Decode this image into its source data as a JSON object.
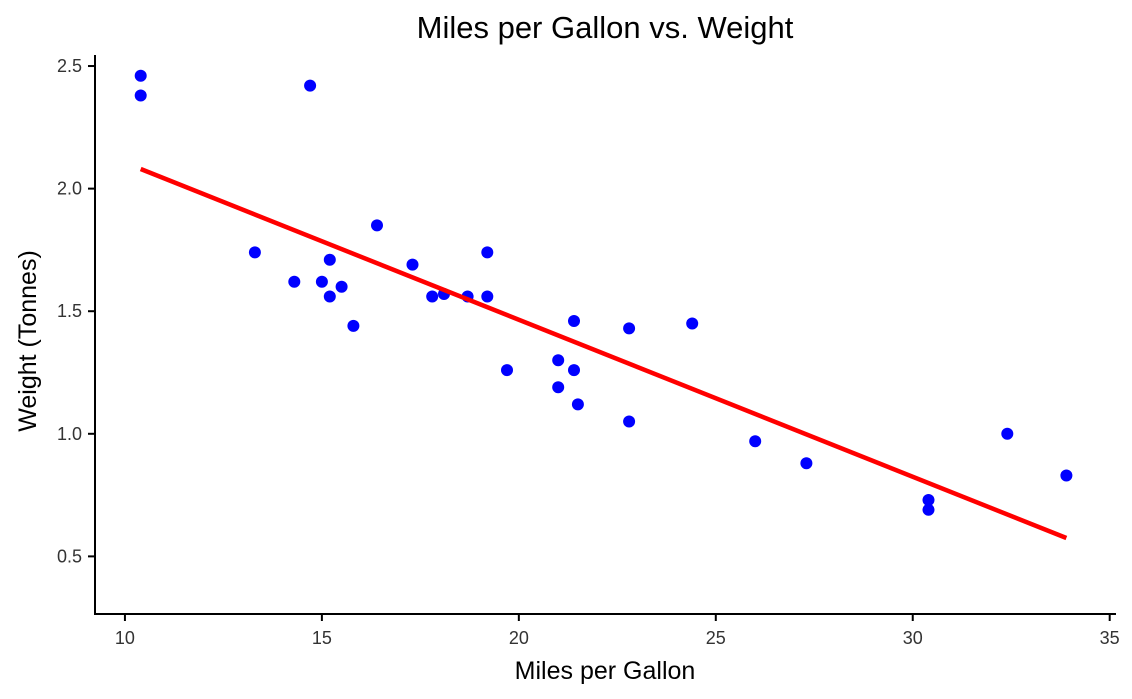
{
  "chart_data": {
    "type": "scatter",
    "title": "Miles per Gallon vs. Weight",
    "xlabel": "Miles per Gallon",
    "ylabel": "Weight (Tonnes)",
    "xlim": [
      9.24,
      35.16
    ],
    "ylim": [
      0.265,
      2.545
    ],
    "x_ticks": [
      10,
      15,
      20,
      25,
      30,
      35
    ],
    "y_ticks": [
      0.5,
      1.0,
      1.5,
      2.0,
      2.5
    ],
    "x_tick_labels": [
      "10",
      "15",
      "20",
      "25",
      "30",
      "35"
    ],
    "y_tick_labels": [
      "0.5",
      "1.0",
      "1.5",
      "2.0",
      "2.5"
    ],
    "grid": false,
    "legend": "none",
    "point_color": "#0000ff",
    "trend_color": "#ff0000",
    "points": [
      {
        "x": 21.0,
        "y": 1.19
      },
      {
        "x": 21.0,
        "y": 1.3
      },
      {
        "x": 22.8,
        "y": 1.05
      },
      {
        "x": 21.4,
        "y": 1.46
      },
      {
        "x": 18.7,
        "y": 1.56
      },
      {
        "x": 18.1,
        "y": 1.57
      },
      {
        "x": 14.3,
        "y": 1.62
      },
      {
        "x": 24.4,
        "y": 1.45
      },
      {
        "x": 22.8,
        "y": 1.43
      },
      {
        "x": 19.2,
        "y": 1.56
      },
      {
        "x": 17.8,
        "y": 1.56
      },
      {
        "x": 16.4,
        "y": 1.85
      },
      {
        "x": 17.3,
        "y": 1.69
      },
      {
        "x": 15.2,
        "y": 1.71
      },
      {
        "x": 10.4,
        "y": 2.38
      },
      {
        "x": 10.4,
        "y": 2.46
      },
      {
        "x": 14.7,
        "y": 2.42
      },
      {
        "x": 32.4,
        "y": 1.0
      },
      {
        "x": 30.4,
        "y": 0.73
      },
      {
        "x": 33.9,
        "y": 0.83
      },
      {
        "x": 21.5,
        "y": 1.12
      },
      {
        "x": 15.5,
        "y": 1.6
      },
      {
        "x": 15.2,
        "y": 1.56
      },
      {
        "x": 13.3,
        "y": 1.74
      },
      {
        "x": 19.2,
        "y": 1.74
      },
      {
        "x": 27.3,
        "y": 0.88
      },
      {
        "x": 26.0,
        "y": 0.97
      },
      {
        "x": 30.4,
        "y": 0.69
      },
      {
        "x": 15.8,
        "y": 1.44
      },
      {
        "x": 19.7,
        "y": 1.26
      },
      {
        "x": 15.0,
        "y": 1.62
      },
      {
        "x": 21.4,
        "y": 1.26
      }
    ],
    "trend_line": {
      "x": [
        10.4,
        33.9
      ],
      "y": [
        2.08,
        0.575
      ]
    }
  }
}
